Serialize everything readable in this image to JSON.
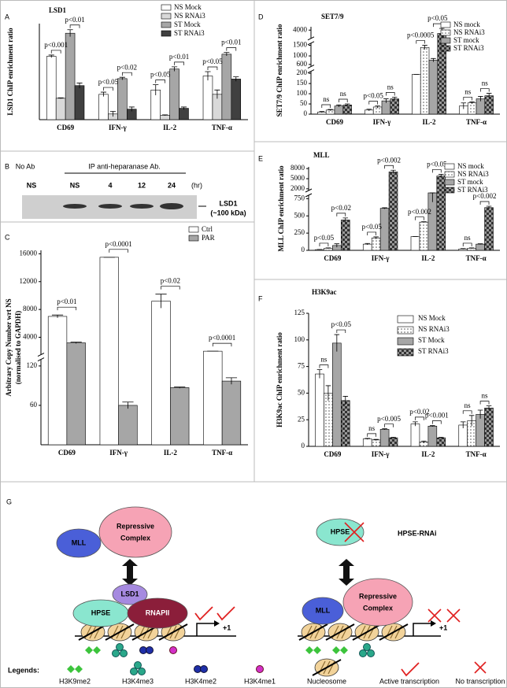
{
  "panel_labels": [
    "A",
    "B",
    "C",
    "D",
    "E",
    "F",
    "G"
  ],
  "chart_data": [
    {
      "type": "bar",
      "title": "LSD1",
      "y_label": [
        "LSD1 ChIP enrichment ratio"
      ],
      "categories": [
        "CD69",
        "IFN-γ",
        "IL-2",
        "TNF-α"
      ],
      "series": [
        {
          "name": "NS Mock",
          "color": "#ffffff",
          "values": [
            14.5,
            5.8,
            6.8,
            10
          ],
          "errors": [
            0.3,
            0.5,
            1.2,
            1.0
          ]
        },
        {
          "name": "NS RNAi3",
          "color": "#d9d9d9",
          "values": [
            4.9,
            1.3,
            1.0,
            5.8
          ],
          "errors": [
            0.1,
            0.6,
            0.1,
            1.0
          ]
        },
        {
          "name": "ST Mock",
          "color": "#a6a6a6",
          "values": [
            19.8,
            9.4,
            11.6,
            15
          ],
          "errors": [
            0.8,
            0.3,
            0.5,
            0.4
          ]
        },
        {
          "name": "ST RNAi3",
          "color": "#404040",
          "values": [
            7.8,
            2.4,
            2.6,
            9.3
          ],
          "errors": [
            0.6,
            0.5,
            0.3,
            0.5
          ]
        }
      ],
      "ylim": [
        0,
        22
      ],
      "legend": "top-right",
      "annotations": [
        "p<0.001",
        "p<0.01",
        "p<0.05",
        "p<0.02",
        "p<0.05",
        "p<0.01",
        "p<0.05",
        "p<0.01"
      ]
    },
    {
      "type": "bar",
      "y_label": [
        "Arbitrary Copy Number wrt NS",
        "(normalised to GAPDH)"
      ],
      "categories": [
        "CD69",
        "IFN-γ",
        "IL-2",
        "TNF-α"
      ],
      "series": [
        {
          "name": "Ctrl",
          "color": "#ffffff",
          "values": [
            7000,
            15500,
            9200,
            2000
          ],
          "errors": [
            200,
            0,
            1000,
            0
          ]
        },
        {
          "name": "PAR",
          "color": "#a6a6a6",
          "values": [
            3200,
            60,
            87,
            97
          ],
          "errors": [
            100,
            5,
            1,
            5
          ]
        }
      ],
      "ylim": [
        0,
        16500
      ],
      "ybreaks": [
        [
          130,
          1500
        ]
      ],
      "yticks": [
        60,
        120,
        4000,
        8000,
        12000,
        16000
      ],
      "legend": "top-right",
      "annotations": [
        "p<0.01",
        "p<0.0001",
        "p<0.02",
        "p<0.0001"
      ]
    },
    {
      "type": "bar",
      "title": "SET7/9",
      "y_label": [
        "SET7/9 ChIP enrichment ratio"
      ],
      "categories": [
        "CD69",
        "IFN-γ",
        "IL-2",
        "TNF-α"
      ],
      "series": [
        {
          "name": "NS mock",
          "color": "#ffffff",
          "values": [
            10,
            20,
            195,
            40
          ],
          "errors": [
            3,
            4,
            0,
            15
          ]
        },
        {
          "name": "NS RNAi3",
          "pattern": "dots",
          "values": [
            20,
            35,
            1400,
            55
          ],
          "errors": [
            3,
            5,
            100,
            5
          ]
        },
        {
          "name": "ST mock",
          "color": "#a6a6a6",
          "values": [
            40,
            65,
            800,
            75
          ],
          "errors": [
            5,
            10,
            80,
            12
          ]
        },
        {
          "name": "ST RNAi3",
          "pattern": "checker",
          "values": [
            45,
            75,
            3800,
            90
          ],
          "errors": [
            5,
            8,
            300,
            12
          ]
        }
      ],
      "ylim": [
        0,
        4200
      ],
      "ybreaks": [
        [
          210,
          500
        ],
        [
          1600,
          3500
        ]
      ],
      "yticks": [
        0,
        50,
        100,
        150,
        200,
        600,
        1000,
        1500,
        4000
      ],
      "legend": "top-right",
      "annotations": [
        "ns",
        "ns",
        "p<0.05",
        "ns",
        "p<0.0005",
        "p<0.05",
        "ns",
        "ns"
      ]
    },
    {
      "type": "bar",
      "title": "MLL",
      "y_label": [
        "MLL ChIP enrichment ratio"
      ],
      "categories": [
        "CD69",
        "IFN-γ",
        "IL-2",
        "TNF-α"
      ],
      "series": [
        {
          "name": "NS mock",
          "color": "#ffffff",
          "values": [
            10,
            90,
            200,
            20
          ],
          "errors": [
            3,
            10,
            0,
            5
          ]
        },
        {
          "name": "NS RNAi3",
          "pattern": "dots",
          "values": [
            30,
            180,
            410,
            30
          ],
          "errors": [
            5,
            15,
            5,
            5
          ]
        },
        {
          "name": "ST mock",
          "color": "#a6a6a6",
          "values": [
            70,
            610,
            820,
            90
          ],
          "errors": [
            25,
            8,
            120,
            5
          ]
        },
        {
          "name": "ST RNAi3",
          "pattern": "checker",
          "values": [
            440,
            7000,
            5800,
            620
          ],
          "errors": [
            30,
            500,
            500,
            20
          ]
        }
      ],
      "ylim": [
        0,
        8500
      ],
      "ybreaks": [
        [
          800,
          1500
        ]
      ],
      "yticks": [
        0,
        250,
        500,
        750,
        2000,
        5000,
        8000
      ],
      "legend": "top-right",
      "annotations": [
        "p<0.05",
        "p<0.02",
        "p<0.05",
        "p<0.002",
        "p<0.002",
        "p<0.05",
        "ns",
        "p<0.002"
      ]
    },
    {
      "type": "bar",
      "title": "H3K9ac",
      "y_label": [
        "H3K9ac ChIP enrichment ratio"
      ],
      "categories": [
        "CD69",
        "IFN-γ",
        "IL-2",
        "TNF-α"
      ],
      "series": [
        {
          "name": "NS Mock",
          "color": "#ffffff",
          "values": [
            68,
            7,
            21,
            20
          ],
          "errors": [
            4,
            0.5,
            2,
            3
          ]
        },
        {
          "name": "NS RNAi3",
          "pattern": "dots",
          "values": [
            50,
            6,
            4,
            24
          ],
          "errors": [
            7,
            0.5,
            1,
            5
          ]
        },
        {
          "name": "ST Mock",
          "color": "#a6a6a6",
          "values": [
            97,
            16,
            19,
            30
          ],
          "errors": [
            8,
            0.5,
            0.5,
            4
          ]
        },
        {
          "name": "ST RNAi3",
          "pattern": "checker",
          "values": [
            43,
            8,
            8,
            36
          ],
          "errors": [
            4,
            0.5,
            0.5,
            2
          ]
        }
      ],
      "ylim": [
        0,
        125
      ],
      "yticks": [
        0,
        25,
        50,
        75,
        100,
        125
      ],
      "legend": "top-right",
      "annotations": [
        "ns",
        "p<0.05",
        "ns",
        "p<0.005",
        "p<0.02",
        "p<0.001",
        "ns",
        "ns"
      ]
    }
  ],
  "blot": {
    "no_ab": "No Ab",
    "ip": "IP anti-heparanase Ab.",
    "lanes": [
      "NS",
      "NS",
      "4",
      "12",
      "24"
    ],
    "unit": "(hr)",
    "band": "LSD1",
    "size": "(~100 kDa)"
  },
  "diagram": {
    "left": {
      "mll": "MLL",
      "repressive": [
        "Repressive",
        "Complex"
      ],
      "lsd1": "LSD1",
      "hpse": "HPSE",
      "rnapii": "RNAPII",
      "tss": "+1"
    },
    "right": {
      "hpse": "HPSE",
      "hpse_rnai": "HPSE-RNAi",
      "mll": "MLL",
      "repressive": [
        "Repressive",
        "Complex"
      ],
      "tss": "+1"
    },
    "legend": {
      "title": "Legends:",
      "items": [
        "H3K9me2",
        "H3K4me3",
        "H3K4me2",
        "H3K4me1",
        "Nucleosome",
        "Active transcription",
        "No transcription"
      ]
    }
  }
}
